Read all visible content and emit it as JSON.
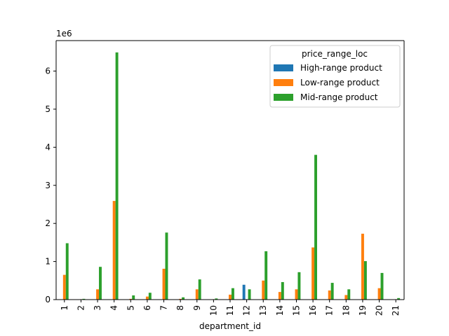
{
  "chart_data": {
    "type": "bar",
    "xlabel": "department_id",
    "ylabel": "",
    "title": "",
    "y_offset_text": "1e6",
    "ylim": [
      0,
      6800000
    ],
    "yticks": [
      0,
      1,
      2,
      3,
      4,
      5,
      6
    ],
    "y_multiplier": 1000000,
    "grid": false,
    "legend": {
      "title": "price_range_loc",
      "placement": "top-right"
    },
    "categories": [
      "1",
      "2",
      "3",
      "4",
      "5",
      "6",
      "7",
      "8",
      "9",
      "10",
      "11",
      "12",
      "13",
      "14",
      "15",
      "16",
      "17",
      "18",
      "19",
      "20",
      "21"
    ],
    "series": [
      {
        "name": "High-range product",
        "color": "#1f77b4",
        "values": [
          0,
          0,
          0,
          0,
          0,
          0,
          0,
          0,
          0,
          0,
          0,
          390000,
          0,
          0,
          0,
          0,
          0,
          0,
          0,
          0,
          0
        ]
      },
      {
        "name": "Low-range product",
        "color": "#ff7f0e",
        "values": [
          650000,
          10000,
          270000,
          2590000,
          20000,
          80000,
          810000,
          20000,
          270000,
          10000,
          130000,
          0,
          500000,
          200000,
          270000,
          1370000,
          240000,
          120000,
          1730000,
          300000,
          10000
        ]
      },
      {
        "name": "Mid-range product",
        "color": "#2ca02c",
        "values": [
          1480000,
          20000,
          860000,
          6490000,
          110000,
          180000,
          1760000,
          60000,
          530000,
          30000,
          300000,
          270000,
          1270000,
          460000,
          720000,
          3800000,
          440000,
          270000,
          1010000,
          700000,
          40000
        ]
      }
    ]
  }
}
